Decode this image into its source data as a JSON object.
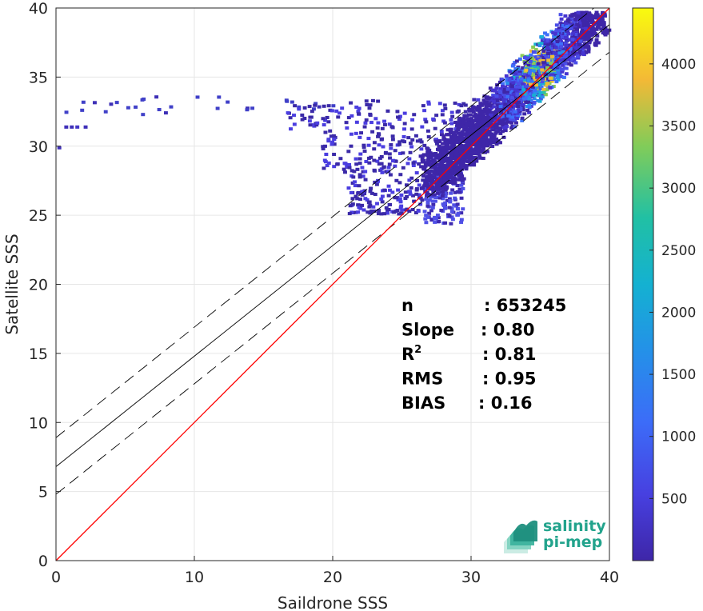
{
  "chart_data": {
    "type": "heatmap",
    "subtype": "density scatter with regression",
    "xlabel": "Saildrone SSS",
    "ylabel": "Satellite SSS",
    "xlim": [
      0,
      40
    ],
    "ylim": [
      0,
      40
    ],
    "xticks": [
      "0",
      "10",
      "20",
      "30",
      "40"
    ],
    "yticks": [
      "0",
      "5",
      "10",
      "15",
      "20",
      "25",
      "30",
      "35",
      "40"
    ],
    "grid": true,
    "colorbar": {
      "range": [
        0,
        4450
      ],
      "ticks": [
        "500",
        "1000",
        "1500",
        "2000",
        "2500",
        "3000",
        "3500",
        "4000"
      ],
      "colormap": "parula"
    },
    "stats": [
      {
        "label": "n",
        "value": ": 653245"
      },
      {
        "label": "Slope",
        "value": ": 0.80"
      },
      {
        "label": "R",
        "sup": "2",
        "value": ": 0.81"
      },
      {
        "label": "RMS",
        "value": ": 0.95"
      },
      {
        "label": "BIAS",
        "value": ": 0.16"
      }
    ],
    "lines": {
      "identity": {
        "slope": 1,
        "intercept": 0,
        "color": "#ff0000"
      },
      "regression": {
        "slope": 0.8,
        "intercept": 6.8,
        "color": "#000000"
      },
      "regression_upper": {
        "slope": 0.8,
        "intercept": 8.9,
        "style": "dashed"
      },
      "regression_lower": {
        "slope": 0.8,
        "intercept": 4.8,
        "style": "dashed"
      }
    },
    "density_regions": [
      {
        "x": [
          27,
          39
        ],
        "y": [
          27,
          39.5
        ],
        "level": "high-along-diagonal"
      },
      {
        "x": [
          20,
          30
        ],
        "y": [
          31,
          33
        ],
        "level": "low"
      },
      {
        "x": [
          22,
          29
        ],
        "y": [
          25,
          30
        ],
        "level": "low"
      },
      {
        "x": [
          26.5,
          28
        ],
        "y": [
          24.3,
          27
        ],
        "level": "low"
      },
      {
        "x": [
          0,
          20
        ],
        "y": [
          31,
          33.5
        ],
        "level": "sparse"
      }
    ],
    "peak": {
      "x": 34.5,
      "y": 34.5,
      "count": 4400
    }
  },
  "logo": {
    "line1": "salinity",
    "line2": "pi-mep"
  },
  "colors": {
    "identity": "#ff0000",
    "regression": "#000000",
    "logo": "#22a38c"
  }
}
